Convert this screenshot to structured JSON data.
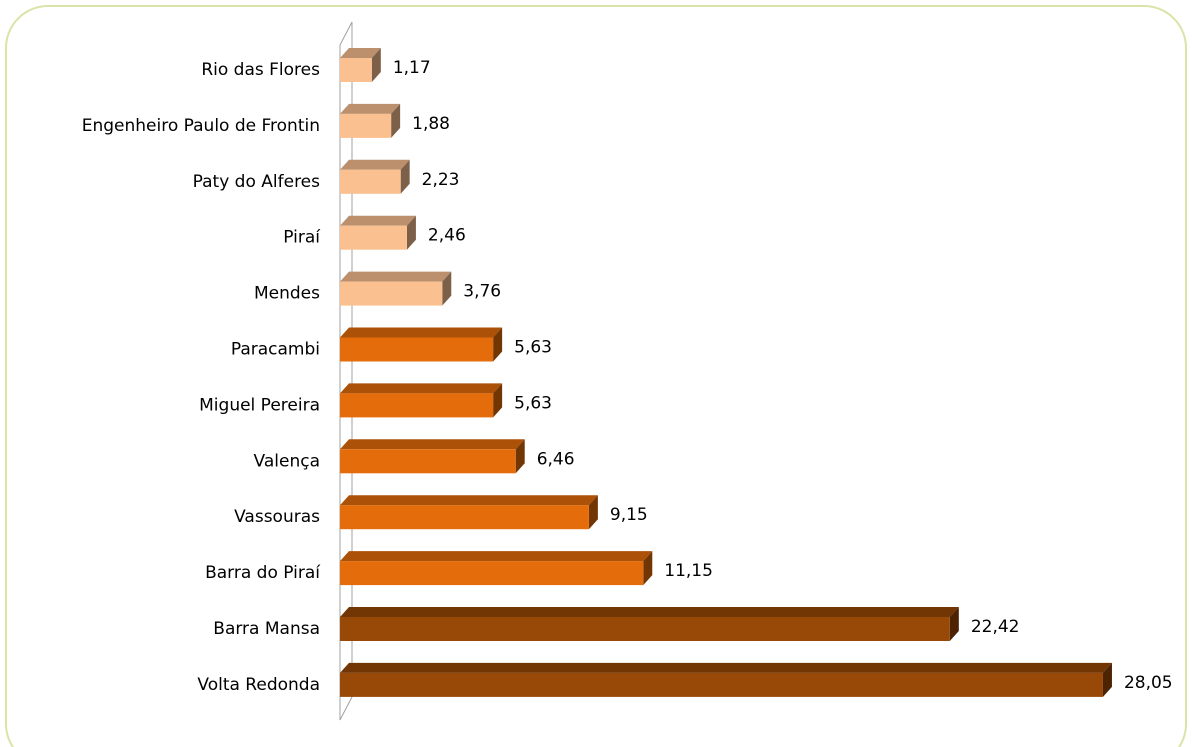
{
  "chart_data": {
    "type": "bar3d-horizontal",
    "categories": [
      "Rio das Flores",
      "Engenheiro Paulo de Frontin",
      "Paty do Alferes",
      "Piraí",
      "Mendes",
      "Paracambi",
      "Miguel Pereira",
      "Valença",
      "Vassouras",
      "Barra do Piraí",
      "Barra Mansa",
      "Volta Redonda"
    ],
    "values": [
      1.17,
      1.88,
      2.23,
      2.46,
      3.76,
      5.63,
      5.63,
      6.46,
      9.15,
      11.15,
      22.42,
      28.05
    ],
    "value_labels": [
      "1,17",
      "1,88",
      "2,23",
      "2,46",
      "3,76",
      "5,63",
      "5,63",
      "6,46",
      "9,15",
      "11,15",
      "22,42",
      "28,05"
    ],
    "colors": [
      "#fac090",
      "#fac090",
      "#fac090",
      "#fac090",
      "#fac090",
      "#e46c0a",
      "#e46c0a",
      "#e46c0a",
      "#e46c0a",
      "#e46c0a",
      "#984807",
      "#984807"
    ]
  }
}
